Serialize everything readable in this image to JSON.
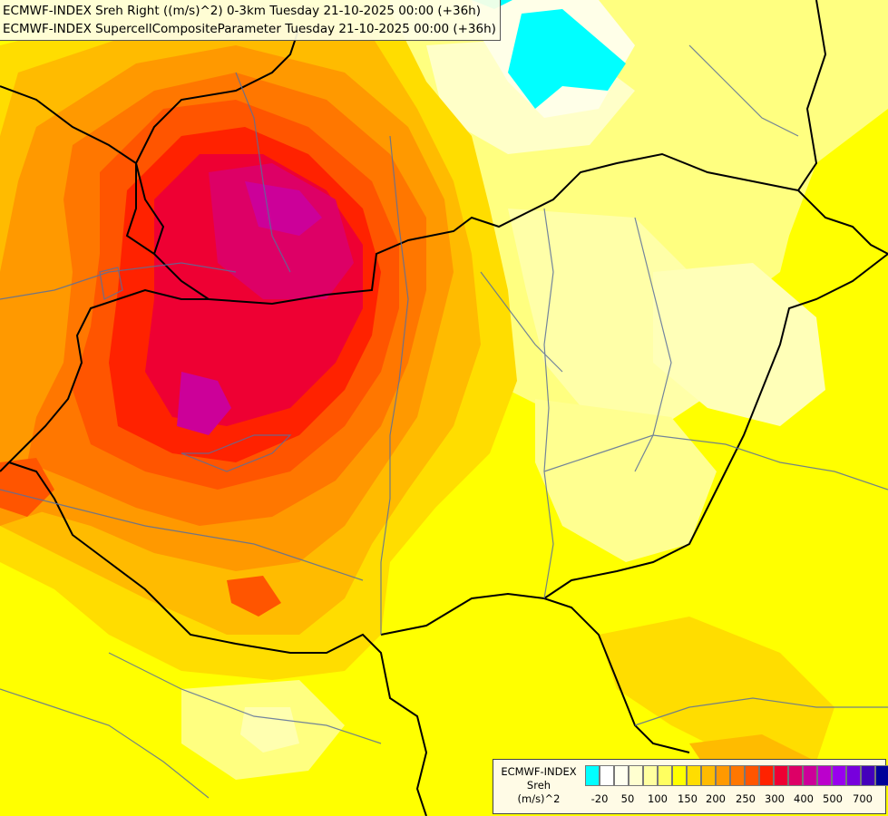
{
  "header": {
    "line1": "ECMWF-INDEX Sreh Right ((m/s)^2) 0-3km Tuesday 21-10-2025 00:00 (+36h)",
    "line2": "ECMWF-INDEX SupercellCompositeParameter Tuesday 21-10-2025 00:00 (+36h)"
  },
  "legend": {
    "line1": "ECMWF-INDEX",
    "line2": "Sreh",
    "line3": "(m/s)^2",
    "colors": [
      "#00ffff",
      "#ffffff",
      "#fffff0",
      "#ffffd0",
      "#ffffa0",
      "#ffff60",
      "#ffff00",
      "#ffdd00",
      "#ffbb00",
      "#ff9900",
      "#ff7700",
      "#ff5500",
      "#ff2200",
      "#ee0033",
      "#dd0066",
      "#cc0099",
      "#bb00cc",
      "#9900ee",
      "#7700dd",
      "#4400bb",
      "#000099"
    ],
    "tick_labels": [
      "-20",
      "50",
      "100",
      "150",
      "200",
      "250",
      "300",
      "400",
      "500",
      "700"
    ]
  }
}
